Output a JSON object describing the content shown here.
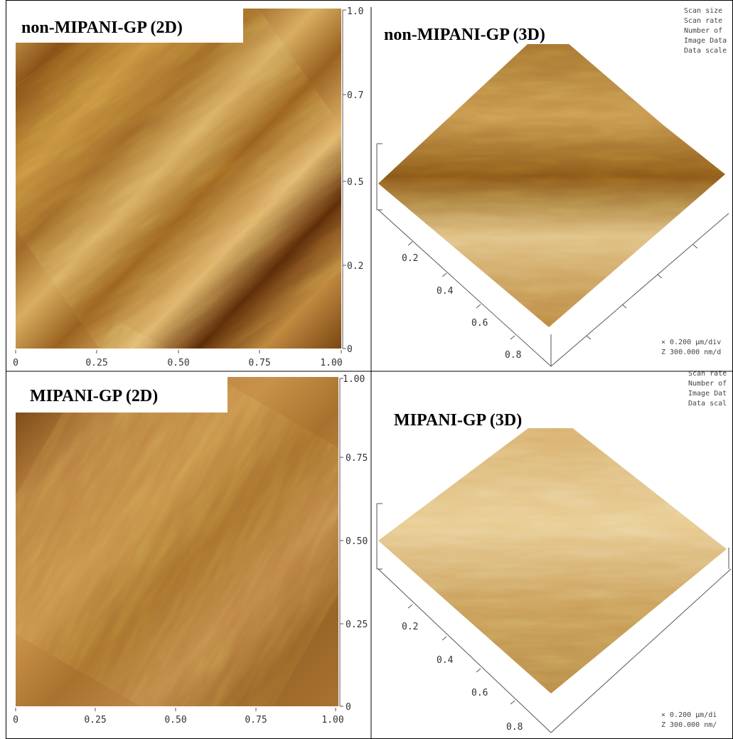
{
  "panels": [
    {
      "label": "non-MIPANI-GP (2D)",
      "right_ticks": [
        "1.0",
        "0.7",
        "0.5",
        "0.2",
        "0"
      ],
      "bottom_ticks": [
        "0",
        "0.25",
        "0.50",
        "0.75",
        "1.00"
      ]
    },
    {
      "label": "non-MIPANI-GP (3D)",
      "axis_ticks": [
        "0.2",
        "0.4",
        "0.6",
        "0.8"
      ],
      "info": [
        "Scan size",
        "Scan rate",
        "Number of",
        "Image Data",
        "Data scale"
      ],
      "scale": [
        "×  0.200 µm/div",
        "Z  300.000 nm/d"
      ]
    },
    {
      "label": "MIPANI-GP (2D)",
      "right_ticks": [
        "1.00",
        "0.75",
        "0.50",
        "0.25",
        "0"
      ],
      "bottom_ticks": [
        "0",
        "0.25",
        "0.50",
        "0.75",
        "1.00"
      ]
    },
    {
      "label": "MIPANI-GP (3D)",
      "axis_ticks": [
        "0.2",
        "0.4",
        "0.6",
        "0.8"
      ],
      "info": [
        "Scan rate",
        "Number of",
        "Image Dat",
        "Data scal"
      ],
      "scale": [
        "×  0.200 µm/di",
        "Z  300.000 nm/"
      ]
    }
  ]
}
